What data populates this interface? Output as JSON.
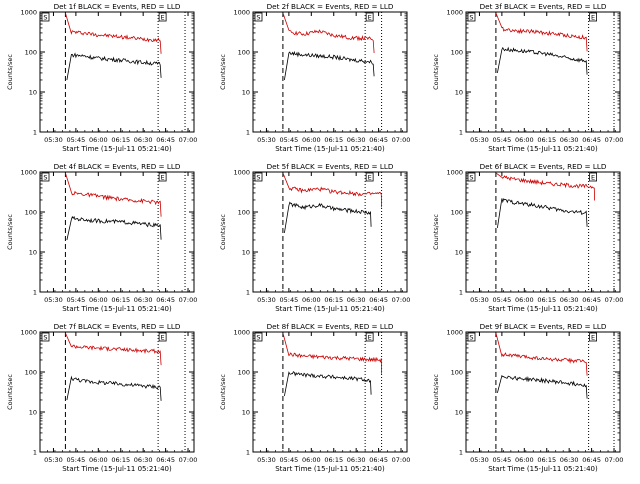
{
  "colors": {
    "events": "#000000",
    "lld": "#cc0000",
    "axis": "#000000",
    "background": "#ffffff"
  },
  "shared": {
    "ylabel": "Counts/sec",
    "xlabel": "Start Time (15-Jul-11 05:21:40)",
    "x_ticks": [
      "05:30",
      "05:45",
      "06:00",
      "06:15",
      "06:30",
      "06:45",
      "07:00"
    ],
    "y_ticks": [
      "1",
      "10",
      "100",
      "1000"
    ],
    "marker_s": "S",
    "marker_e": "E"
  },
  "chart_data": [
    {
      "type": "line",
      "title": "Det 1f BLACK = Events, RED = LLD",
      "xlabel": "Start Time (15-Jul-11 05:21:40)",
      "ylabel": "Counts/sec",
      "y_scale": "log",
      "ylim": [
        1,
        1000
      ],
      "x_ticks": [
        "05:30",
        "05:45",
        "06:00",
        "06:15",
        "06:30",
        "06:45",
        "07:00"
      ],
      "dashed_vline": "05:38",
      "dotted_vlines": [
        "06:40",
        "06:58"
      ],
      "series": [
        {
          "name": "LLD",
          "color": "red",
          "x": [
            "05:38",
            "05:42",
            "05:50",
            "06:00",
            "06:10",
            "06:20",
            "06:30",
            "06:42"
          ],
          "y": [
            950,
            320,
            300,
            270,
            250,
            230,
            210,
            200
          ]
        },
        {
          "name": "Events",
          "color": "black",
          "x": [
            "05:39",
            "05:42",
            "05:50",
            "06:00",
            "06:10",
            "06:20",
            "06:30",
            "06:42"
          ],
          "y": [
            20,
            85,
            80,
            70,
            65,
            60,
            55,
            50
          ]
        }
      ]
    },
    {
      "type": "line",
      "title": "Det 2f BLACK = Events, RED = LLD",
      "xlabel": "Start Time (15-Jul-11 05:21:40)",
      "ylabel": "Counts/sec",
      "y_scale": "log",
      "ylim": [
        1,
        1000
      ],
      "x_ticks": [
        "05:30",
        "05:45",
        "06:00",
        "06:15",
        "06:30",
        "06:45",
        "07:00"
      ],
      "dashed_vline": "05:41",
      "dotted_vlines": [
        "06:36",
        "06:47"
      ],
      "series": [
        {
          "name": "LLD",
          "color": "red",
          "x": [
            "05:41",
            "05:45",
            "05:55",
            "06:05",
            "06:15",
            "06:25",
            "06:35",
            "06:42"
          ],
          "y": [
            950,
            320,
            280,
            330,
            260,
            230,
            220,
            210
          ]
        },
        {
          "name": "Events",
          "color": "black",
          "x": [
            "05:42",
            "05:45",
            "05:55",
            "06:05",
            "06:15",
            "06:25",
            "06:35",
            "06:42"
          ],
          "y": [
            20,
            95,
            85,
            80,
            75,
            65,
            60,
            55
          ]
        }
      ]
    },
    {
      "type": "line",
      "title": "Det 3f BLACK = Events, RED = LLD",
      "xlabel": "Start Time (15-Jul-11 05:21:40)",
      "ylabel": "Counts/sec",
      "y_scale": "log",
      "ylim": [
        1,
        1000
      ],
      "x_ticks": [
        "05:30",
        "05:45",
        "06:00",
        "06:15",
        "06:30",
        "06:45",
        "07:00"
      ],
      "dashed_vline": "05:41",
      "dotted_vlines": [
        "06:43",
        "07:00"
      ],
      "series": [
        {
          "name": "LLD",
          "color": "red",
          "x": [
            "05:41",
            "05:45",
            "05:55",
            "06:05",
            "06:15",
            "06:25",
            "06:35",
            "06:42"
          ],
          "y": [
            950,
            380,
            340,
            330,
            300,
            270,
            240,
            230
          ]
        },
        {
          "name": "Events",
          "color": "black",
          "x": [
            "05:42",
            "05:45",
            "05:55",
            "06:05",
            "06:15",
            "06:25",
            "06:35",
            "06:42"
          ],
          "y": [
            30,
            120,
            110,
            100,
            90,
            75,
            65,
            60
          ]
        }
      ]
    },
    {
      "type": "line",
      "title": "Det 4f BLACK = Events, RED = LLD",
      "xlabel": "Start Time (15-Jul-11 05:21:40)",
      "ylabel": "Counts/sec",
      "y_scale": "log",
      "ylim": [
        1,
        1000
      ],
      "x_ticks": [
        "05:30",
        "05:45",
        "06:00",
        "06:15",
        "06:30",
        "06:45",
        "07:00"
      ],
      "dashed_vline": "05:38",
      "dotted_vlines": [
        "06:40",
        "06:58"
      ],
      "series": [
        {
          "name": "LLD",
          "color": "red",
          "x": [
            "05:38",
            "05:42",
            "05:50",
            "06:00",
            "06:10",
            "06:20",
            "06:30",
            "06:42"
          ],
          "y": [
            950,
            300,
            280,
            250,
            220,
            200,
            190,
            170
          ]
        },
        {
          "name": "Events",
          "color": "black",
          "x": [
            "05:39",
            "05:42",
            "05:50",
            "06:00",
            "06:10",
            "06:20",
            "06:30",
            "06:42"
          ],
          "y": [
            20,
            70,
            65,
            60,
            58,
            55,
            50,
            45
          ]
        }
      ]
    },
    {
      "type": "line",
      "title": "Det 5f BLACK = Events, RED = LLD",
      "xlabel": "Start Time (15-Jul-11 05:21:40)",
      "ylabel": "Counts/sec",
      "y_scale": "log",
      "ylim": [
        1,
        1000
      ],
      "x_ticks": [
        "05:30",
        "05:45",
        "06:00",
        "06:15",
        "06:30",
        "06:45",
        "07:00"
      ],
      "dashed_vline": "05:41",
      "dotted_vlines": [
        "06:36",
        "06:47"
      ],
      "series": [
        {
          "name": "LLD",
          "color": "red",
          "x": [
            "05:41",
            "05:45",
            "05:55",
            "06:05",
            "06:15",
            "06:25",
            "06:35",
            "06:47"
          ],
          "y": [
            950,
            400,
            340,
            380,
            320,
            300,
            280,
            290
          ]
        },
        {
          "name": "Events",
          "color": "black",
          "x": [
            "05:42",
            "05:45",
            "05:55",
            "06:05",
            "06:15",
            "06:25",
            "06:35",
            "06:40"
          ],
          "y": [
            30,
            160,
            130,
            150,
            120,
            110,
            100,
            95
          ]
        }
      ]
    },
    {
      "type": "line",
      "title": "Det 6f BLACK = Events, RED = LLD",
      "xlabel": "Start Time (15-Jul-11 05:21:40)",
      "ylabel": "Counts/sec",
      "y_scale": "log",
      "ylim": [
        1,
        1000
      ],
      "x_ticks": [
        "05:30",
        "05:45",
        "06:00",
        "06:15",
        "06:30",
        "06:45",
        "07:00"
      ],
      "dashed_vline": "05:41",
      "dotted_vlines": [
        "06:43",
        "07:00"
      ],
      "series": [
        {
          "name": "LLD",
          "color": "red",
          "x": [
            "05:41",
            "05:45",
            "05:55",
            "06:05",
            "06:15",
            "06:25",
            "06:35",
            "06:47"
          ],
          "y": [
            950,
            750,
            650,
            580,
            520,
            480,
            450,
            430
          ]
        },
        {
          "name": "Events",
          "color": "black",
          "x": [
            "05:42",
            "05:45",
            "05:55",
            "06:05",
            "06:15",
            "06:25",
            "06:35",
            "06:42"
          ],
          "y": [
            40,
            200,
            170,
            150,
            130,
            110,
            100,
            95
          ]
        }
      ]
    },
    {
      "type": "line",
      "title": "Det 7f BLACK = Events, RED = LLD",
      "xlabel": "Start Time (15-Jul-11 05:21:40)",
      "ylabel": "Counts/sec",
      "y_scale": "log",
      "ylim": [
        1,
        1000
      ],
      "x_ticks": [
        "05:30",
        "05:45",
        "06:00",
        "06:15",
        "06:30",
        "06:45",
        "07:00"
      ],
      "dashed_vline": "05:38",
      "dotted_vlines": [
        "06:40",
        "06:58"
      ],
      "series": [
        {
          "name": "LLD",
          "color": "red",
          "x": [
            "05:38",
            "05:42",
            "05:50",
            "06:00",
            "06:10",
            "06:20",
            "06:30",
            "06:42"
          ],
          "y": [
            950,
            450,
            420,
            400,
            380,
            360,
            340,
            330
          ]
        },
        {
          "name": "Events",
          "color": "black",
          "x": [
            "05:39",
            "05:42",
            "05:50",
            "06:00",
            "06:10",
            "06:20",
            "06:30",
            "06:42"
          ],
          "y": [
            20,
            70,
            60,
            55,
            52,
            48,
            45,
            42
          ]
        }
      ]
    },
    {
      "type": "line",
      "title": "Det 8f BLACK = Events, RED = LLD",
      "xlabel": "Start Time (15-Jul-11 05:21:40)",
      "ylabel": "Counts/sec",
      "y_scale": "log",
      "ylim": [
        1,
        1000
      ],
      "x_ticks": [
        "05:30",
        "05:45",
        "06:00",
        "06:15",
        "06:30",
        "06:45",
        "07:00"
      ],
      "dashed_vline": "05:41",
      "dotted_vlines": [
        "06:36",
        "06:47"
      ],
      "series": [
        {
          "name": "LLD",
          "color": "red",
          "x": [
            "05:41",
            "05:45",
            "05:55",
            "06:05",
            "06:15",
            "06:25",
            "06:35",
            "06:47"
          ],
          "y": [
            950,
            280,
            250,
            240,
            230,
            220,
            210,
            200
          ]
        },
        {
          "name": "Events",
          "color": "black",
          "x": [
            "05:42",
            "05:45",
            "05:55",
            "06:05",
            "06:15",
            "06:25",
            "06:35",
            "06:40"
          ],
          "y": [
            25,
            95,
            85,
            80,
            75,
            70,
            65,
            60
          ]
        }
      ]
    },
    {
      "type": "line",
      "title": "Det 9f BLACK = Events, RED = LLD",
      "xlabel": "Start Time (15-Jul-11 05:21:40)",
      "ylabel": "Counts/sec",
      "y_scale": "log",
      "ylim": [
        1,
        1000
      ],
      "x_ticks": [
        "05:30",
        "05:45",
        "06:00",
        "06:15",
        "06:30",
        "06:45",
        "07:00"
      ],
      "dashed_vline": "05:41",
      "dotted_vlines": [
        "06:43",
        "07:00"
      ],
      "series": [
        {
          "name": "LLD",
          "color": "red",
          "x": [
            "05:41",
            "05:45",
            "05:55",
            "06:05",
            "06:15",
            "06:25",
            "06:35",
            "06:42"
          ],
          "y": [
            950,
            280,
            250,
            230,
            210,
            200,
            190,
            180
          ]
        },
        {
          "name": "Events",
          "color": "black",
          "x": [
            "05:42",
            "05:45",
            "05:55",
            "06:05",
            "06:15",
            "06:25",
            "06:35",
            "06:42"
          ],
          "y": [
            30,
            80,
            70,
            65,
            60,
            55,
            50,
            48
          ]
        }
      ]
    }
  ]
}
